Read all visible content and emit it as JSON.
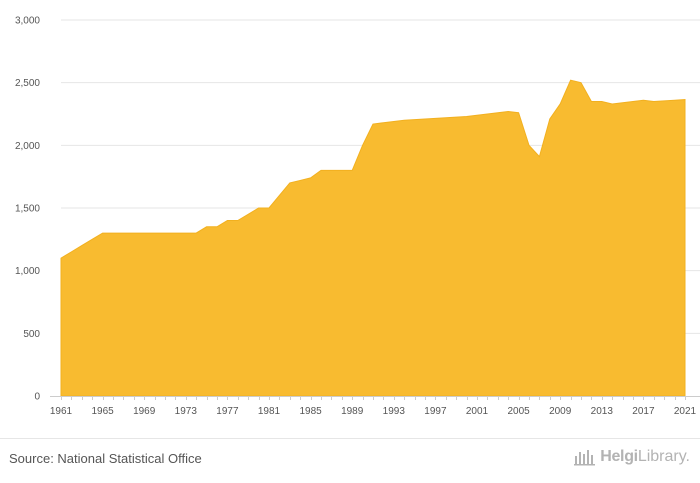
{
  "chart_data": {
    "type": "area",
    "title": "",
    "xlabel": "",
    "ylabel": "",
    "ylim": [
      0,
      3000
    ],
    "xlim": [
      1961,
      2021
    ],
    "yticks": [
      0,
      500,
      1000,
      1500,
      2000,
      2500,
      3000
    ],
    "ytick_labels": [
      "0",
      "500",
      "1,000",
      "1,500",
      "2,000",
      "2,500",
      "3,000"
    ],
    "xticks": [
      1961,
      1965,
      1969,
      1973,
      1977,
      1981,
      1985,
      1989,
      1993,
      1997,
      2001,
      2005,
      2009,
      2013,
      2017,
      2021
    ],
    "grid": true,
    "color": "#f8bb30",
    "series": [
      {
        "x": [
          1961,
          1962,
          1963,
          1964,
          1965,
          1966,
          1967,
          1968,
          1969,
          1970,
          1971,
          1972,
          1973,
          1974,
          1975,
          1976,
          1977,
          1978,
          1979,
          1980,
          1981,
          1982,
          1983,
          1984,
          1985,
          1986,
          1987,
          1988,
          1989,
          1990,
          1991,
          1992,
          1993,
          1994,
          1995,
          1996,
          1997,
          1998,
          1999,
          2000,
          2001,
          2002,
          2003,
          2004,
          2005,
          2006,
          2007,
          2008,
          2009,
          2010,
          2011,
          2012,
          2013,
          2014,
          2015,
          2016,
          2017,
          2018,
          2019,
          2020,
          2021
        ],
        "values": [
          1100,
          1150,
          1200,
          1250,
          1300,
          1300,
          1300,
          1300,
          1300,
          1300,
          1300,
          1300,
          1300,
          1300,
          1350,
          1350,
          1400,
          1400,
          1450,
          1500,
          1500,
          1600,
          1700,
          1720,
          1740,
          1800,
          1800,
          1800,
          1800,
          2000,
          2170,
          2180,
          2190,
          2200,
          2205,
          2210,
          2215,
          2220,
          2225,
          2230,
          2240,
          2250,
          2260,
          2270,
          2260,
          2000,
          1910,
          2210,
          2330,
          2520,
          2500,
          2350,
          2350,
          2330,
          2340,
          2350,
          2360,
          2350,
          2355,
          2360,
          2365
        ]
      }
    ]
  },
  "footer": {
    "source": "Source: National Statistical Office",
    "brand_name": "Helgi",
    "brand_sub": "Library."
  }
}
